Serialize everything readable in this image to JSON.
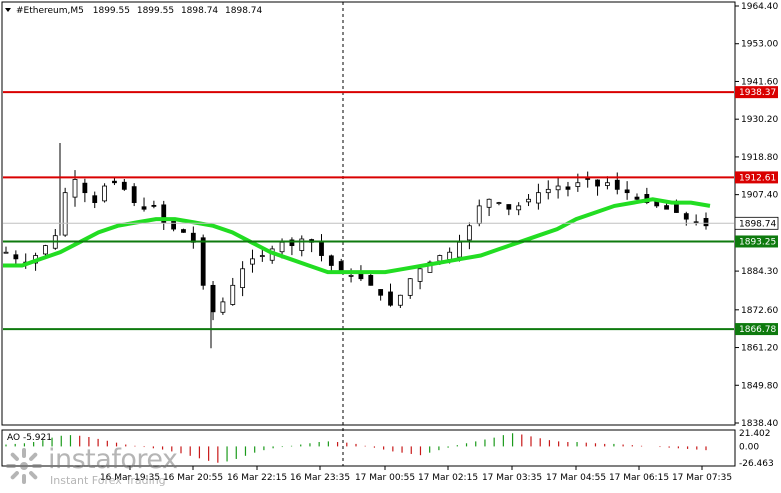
{
  "header": {
    "arrow_icon": "triangle-down-icon",
    "symbol": "#Ethereum,M5",
    "open": "1899.55",
    "high": "1899.55",
    "low": "1898.74",
    "close": "1898.74"
  },
  "price_axis": {
    "labels": [
      "1964.40",
      "1953.00",
      "1941.60",
      "1930.20",
      "1918.80",
      "1907.40",
      "1884.30",
      "1872.60",
      "1861.20",
      "1849.80",
      "1838.40"
    ]
  },
  "levels": [
    {
      "label": "1938.37",
      "price": 1938.37,
      "color": "#d90000",
      "text_color": "#ffffff"
    },
    {
      "label": "1912.61",
      "price": 1912.61,
      "color": "#d90000",
      "text_color": "#ffffff"
    },
    {
      "label": "1893.25",
      "price": 1893.25,
      "color": "#0e7a0e",
      "text_color": "#ffffff"
    },
    {
      "label": "1866.78",
      "price": 1866.78,
      "color": "#0e7a0e",
      "text_color": "#ffffff"
    }
  ],
  "current_price": {
    "label": "1898.74",
    "price": 1898.74,
    "bg": "#ffffff",
    "text_color": "#000000"
  },
  "time_axis": {
    "labels": [
      "16 Mar 19:35",
      "16 Mar 20:55",
      "16 Mar 22:15",
      "16 Mar 23:35",
      "17 Mar 00:55",
      "17 Mar 02:15",
      "17 Mar 03:35",
      "17 Mar 04:55",
      "17 Mar 06:15",
      "17 Mar 07:35"
    ]
  },
  "indicator": {
    "name": "AO -5.921",
    "labels": [
      "21.402",
      "0.00",
      "-26.463"
    ],
    "up_color": "#1a9a1a",
    "down_color": "#c81818"
  },
  "watermark": {
    "brand": "instaforex",
    "tagline": "Instant Forex Trading",
    "icon": "instaforex-logo-icon"
  },
  "colors": {
    "ma": "#22dd22",
    "candle": "#000000",
    "grid": "#c0c0c0",
    "dashed_line": "#000000"
  },
  "chart_data": {
    "type": "candlestick",
    "series": [
      {
        "name": "#Ethereum,M5"
      }
    ],
    "close_path": [
      1890,
      1888,
      1887,
      1889,
      1892,
      1895,
      1908,
      1912,
      1908,
      1905,
      1910,
      1911,
      1909,
      1905,
      1903,
      1904,
      1899,
      1897,
      1896,
      1893,
      1880,
      1872,
      1875,
      1880,
      1885,
      1888,
      1889,
      1891,
      1893,
      1892,
      1894,
      1893,
      1889,
      1886,
      1884,
      1883,
      1882,
      1880,
      1877,
      1874,
      1877,
      1882,
      1885,
      1887,
      1889,
      1890,
      1893,
      1898,
      1904,
      1906,
      1905,
      1903,
      1904,
      1906,
      1908,
      1909,
      1910,
      1909,
      1911,
      1912,
      1910,
      1911,
      1909,
      1908,
      1906,
      1905,
      1904,
      1903,
      1902,
      1900,
      1899,
      1898
    ],
    "ma_values": [
      1886,
      1886,
      1888,
      1890,
      1893,
      1896,
      1898,
      1899,
      1900,
      1900,
      1899,
      1898,
      1896,
      1893,
      1890,
      1888,
      1886,
      1884,
      1884,
      1884,
      1884,
      1885,
      1886,
      1887,
      1888,
      1889,
      1891,
      1893,
      1895,
      1897,
      1900,
      1902,
      1904,
      1905,
      1906,
      1905,
      1905,
      1904
    ],
    "ao_values": [
      3,
      4,
      5,
      7,
      10,
      14,
      17,
      18,
      17,
      15,
      12,
      9,
      6,
      3,
      1,
      -1,
      -3,
      -5,
      -8,
      -11,
      -15,
      -19,
      -23,
      -26,
      -24,
      -20,
      -15,
      -10,
      -6,
      -3,
      -1,
      1,
      3,
      5,
      7,
      8,
      7,
      6,
      4,
      1,
      -2,
      -5,
      -8,
      -10,
      -12,
      -14,
      -10,
      -6,
      -2,
      2,
      5,
      8,
      11,
      14,
      18,
      21,
      19,
      16,
      13,
      10,
      8,
      7,
      7,
      6,
      5,
      4,
      4,
      3,
      2,
      1,
      0,
      -1,
      -2,
      -3,
      -4,
      -5,
      -6
    ]
  }
}
